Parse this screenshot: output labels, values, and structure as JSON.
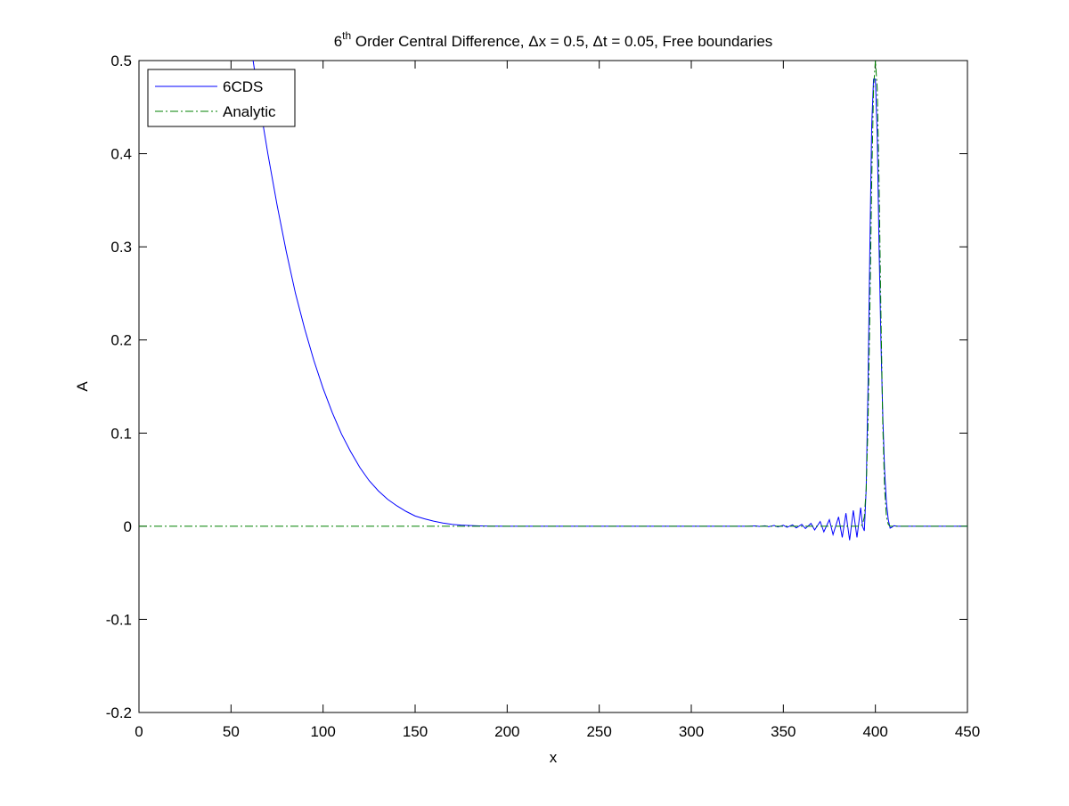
{
  "chart_data": {
    "type": "line",
    "title": {
      "sup_base": "6",
      "sup": "th",
      "rest": " Order Central Difference, Δx = 0.5, Δt = 0.05, Free boundaries"
    },
    "xlabel": "x",
    "ylabel": "A",
    "xlim": [
      0,
      450
    ],
    "ylim": [
      -0.2,
      0.5
    ],
    "xticks": [
      0,
      50,
      100,
      150,
      200,
      250,
      300,
      350,
      400,
      450
    ],
    "yticks": [
      -0.2,
      -0.1,
      0,
      0.1,
      0.2,
      0.3,
      0.4,
      0.5
    ],
    "xtick_labels": [
      "0",
      "50",
      "100",
      "150",
      "200",
      "250",
      "300",
      "350",
      "400",
      "450"
    ],
    "ytick_labels": [
      "-0.2",
      "-0.1",
      "0",
      "0.1",
      "0.2",
      "0.3",
      "0.4",
      "0.5"
    ],
    "grid": false,
    "legend_position": "top-left",
    "series": [
      {
        "name": "6CDS",
        "color": "#0000ff",
        "style": "solid",
        "points": [
          [
            62,
            0.5
          ],
          [
            65,
            0.46
          ],
          [
            70,
            0.4
          ],
          [
            75,
            0.345
          ],
          [
            80,
            0.295
          ],
          [
            85,
            0.25
          ],
          [
            90,
            0.212
          ],
          [
            95,
            0.178
          ],
          [
            100,
            0.148
          ],
          [
            105,
            0.122
          ],
          [
            110,
            0.099
          ],
          [
            115,
            0.08
          ],
          [
            120,
            0.063
          ],
          [
            125,
            0.049
          ],
          [
            130,
            0.038
          ],
          [
            135,
            0.029
          ],
          [
            140,
            0.022
          ],
          [
            145,
            0.016
          ],
          [
            150,
            0.011
          ],
          [
            155,
            0.008
          ],
          [
            160,
            0.0055
          ],
          [
            165,
            0.0035
          ],
          [
            170,
            0.002
          ],
          [
            175,
            0.0012
          ],
          [
            180,
            0.0007
          ],
          [
            185,
            0.0003
          ],
          [
            190,
            0.0001
          ],
          [
            200,
            0
          ],
          [
            330,
            0
          ],
          [
            335,
            0.0003
          ],
          [
            337,
            -0.0003
          ],
          [
            340,
            0.0005
          ],
          [
            342,
            -0.0005
          ],
          [
            345,
            0.0008
          ],
          [
            347,
            -0.0008
          ],
          [
            350,
            0.001
          ],
          [
            352,
            -0.0012
          ],
          [
            355,
            0.0015
          ],
          [
            357,
            -0.0018
          ],
          [
            360,
            0.002
          ],
          [
            362,
            -0.0025
          ],
          [
            365,
            0.003
          ],
          [
            367,
            -0.004
          ],
          [
            370,
            0.005
          ],
          [
            372,
            -0.006
          ],
          [
            375,
            0.007
          ],
          [
            377,
            -0.009
          ],
          [
            380,
            0.01
          ],
          [
            382,
            -0.012
          ],
          [
            384,
            0.014
          ],
          [
            386,
            -0.015
          ],
          [
            388,
            0.017
          ],
          [
            390,
            -0.012
          ],
          [
            392,
            0.02
          ],
          [
            393,
            0.0
          ],
          [
            394,
            -0.005
          ],
          [
            395,
            0.04
          ],
          [
            396,
            0.15
          ],
          [
            397,
            0.3
          ],
          [
            398,
            0.43
          ],
          [
            399,
            0.48
          ],
          [
            400,
            0.48
          ],
          [
            401,
            0.42
          ],
          [
            402,
            0.3
          ],
          [
            403,
            0.2
          ],
          [
            404,
            0.12
          ],
          [
            405,
            0.06
          ],
          [
            406,
            0.025
          ],
          [
            407,
            0.007
          ],
          [
            408,
            -0.002
          ],
          [
            409,
            -0.001
          ],
          [
            410,
            0.0005
          ],
          [
            412,
            0
          ],
          [
            450,
            0
          ]
        ]
      },
      {
        "name": "Analytic",
        "color": "#008000",
        "style": "dashdot",
        "points": [
          [
            0,
            0
          ],
          [
            392,
            0
          ],
          [
            393,
            0.002
          ],
          [
            394,
            0.01
          ],
          [
            395,
            0.04
          ],
          [
            396,
            0.11
          ],
          [
            397,
            0.23
          ],
          [
            398,
            0.37
          ],
          [
            399,
            0.47
          ],
          [
            400,
            0.5
          ],
          [
            401,
            0.47
          ],
          [
            402,
            0.37
          ],
          [
            403,
            0.23
          ],
          [
            404,
            0.11
          ],
          [
            405,
            0.04
          ],
          [
            406,
            0.01
          ],
          [
            407,
            0.002
          ],
          [
            408,
            0
          ],
          [
            450,
            0
          ]
        ]
      }
    ]
  }
}
